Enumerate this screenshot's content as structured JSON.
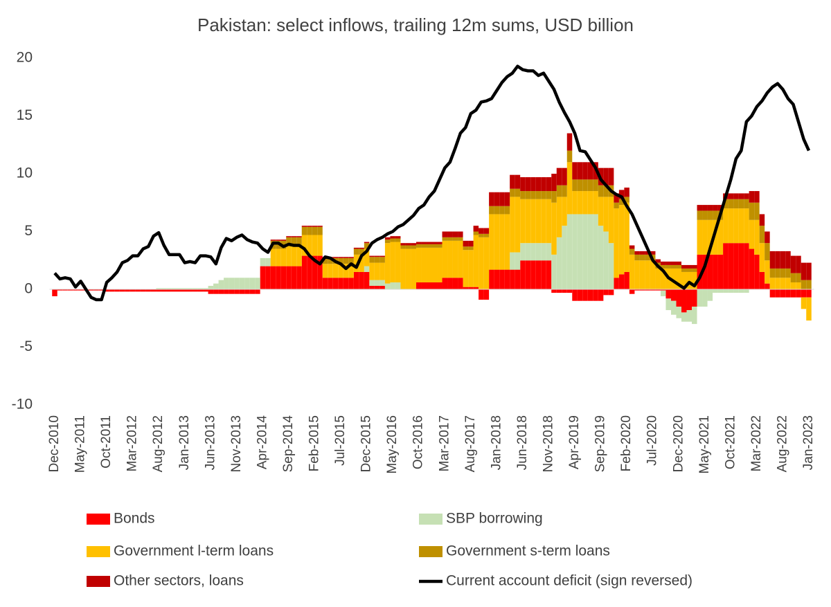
{
  "chart_data": {
    "type": "bar",
    "stacked": true,
    "title": "Pakistan: select inflows, trailing 12m sums, USD billion",
    "categories": [
      "Dec-2010",
      null,
      null,
      null,
      null,
      "May-2011",
      null,
      null,
      null,
      null,
      "Oct-2011",
      null,
      null,
      null,
      null,
      "Mar-2012",
      null,
      null,
      null,
      null,
      "Aug-2012",
      null,
      null,
      null,
      null,
      "Jan-2013",
      null,
      null,
      null,
      null,
      "Jun-2013",
      null,
      null,
      null,
      null,
      "Nov-2013",
      null,
      null,
      null,
      null,
      "Apr-2014",
      null,
      null,
      null,
      null,
      "Sep-2014",
      null,
      null,
      null,
      null,
      "Feb-2015",
      null,
      null,
      null,
      null,
      "Jul-2015",
      null,
      null,
      null,
      null,
      "Dec-2015",
      null,
      null,
      null,
      null,
      "May-2016",
      null,
      null,
      null,
      null,
      "Oct-2016",
      null,
      null,
      null,
      null,
      "Mar-2017",
      null,
      null,
      null,
      null,
      "Aug-2017",
      null,
      null,
      null,
      null,
      "Jan-2018",
      null,
      null,
      null,
      null,
      "Jun-2018",
      null,
      null,
      null,
      null,
      "Nov-2018",
      null,
      null,
      null,
      null,
      "Apr-2019",
      null,
      null,
      null,
      null,
      "Sep-2019",
      null,
      null,
      null,
      null,
      "Feb-2020",
      null,
      null,
      null,
      null,
      "Jul-2020",
      null,
      null,
      null,
      null,
      "Dec-2020",
      null,
      null,
      null,
      null,
      "May-2021",
      null,
      null,
      null,
      null,
      "Oct-2021",
      null,
      null,
      null,
      null,
      "Mar-2022",
      null,
      null,
      null,
      null,
      "Aug-2022",
      null,
      null,
      null,
      null,
      "Jan-2023"
    ],
    "series": [
      {
        "name": "Bonds",
        "color": "#ff0000",
        "values": [
          -0.6,
          -0.1,
          -0.1,
          -0.1,
          -0.1,
          -0.1,
          -0.1,
          -0.1,
          -0.1,
          -0.1,
          -0.2,
          -0.2,
          -0.2,
          -0.2,
          -0.2,
          -0.2,
          -0.2,
          -0.2,
          -0.2,
          -0.2,
          -0.2,
          -0.2,
          -0.2,
          -0.2,
          -0.2,
          -0.2,
          -0.2,
          -0.2,
          -0.2,
          -0.2,
          -0.4,
          -0.4,
          -0.4,
          -0.4,
          -0.4,
          -0.4,
          -0.4,
          -0.4,
          -0.4,
          -0.4,
          2,
          2,
          2,
          2,
          2,
          2,
          2,
          2,
          2.9,
          2.9,
          2.9,
          2.9,
          1,
          1,
          1,
          1,
          1,
          1,
          1.5,
          1.5,
          1.5,
          0.3,
          0.3,
          0.3,
          0,
          0,
          0,
          0,
          0,
          0,
          0.6,
          0.6,
          0.6,
          0.6,
          0.6,
          1,
          1,
          1,
          1,
          0.2,
          0.2,
          0.2,
          -0.9,
          -0.9,
          1.7,
          1.7,
          1.7,
          1.7,
          1.7,
          1.7,
          2.5,
          2.5,
          2.5,
          2.5,
          2.5,
          2.5,
          -0.3,
          -0.3,
          -0.3,
          -0.3,
          -1,
          -1,
          -1,
          -1,
          -1,
          -1,
          -0.5,
          -0.5,
          1,
          1.3,
          1.5,
          -0.4,
          -0.1,
          -0.1,
          -0.1,
          -0.1,
          -0.1,
          -0.1,
          -0.8,
          -1,
          -1.5,
          -2,
          -1.8,
          -1.5,
          3,
          3,
          3,
          3,
          3,
          4,
          4,
          4,
          4,
          4,
          3.5,
          3,
          1.5,
          0.5,
          -0.7,
          -0.7,
          -0.7,
          -0.7,
          -0.7,
          -0.7,
          -0.7,
          -0.7
        ]
      },
      {
        "name": "SBP borrowing",
        "color": "#c6e0b4",
        "values": [
          0,
          0,
          0,
          0,
          0,
          0,
          0,
          0,
          0,
          0,
          0,
          0,
          0,
          0,
          0,
          0,
          0,
          0,
          0,
          0,
          0.1,
          0.1,
          0.1,
          0.1,
          0.1,
          0.1,
          0.1,
          0.1,
          0.1,
          0.1,
          0.3,
          0.5,
          0.8,
          1,
          1,
          1,
          1,
          1,
          1,
          1,
          0.7,
          0.7,
          0,
          0,
          0,
          0,
          0,
          0,
          0,
          0,
          0,
          0,
          0,
          0,
          0,
          0,
          0,
          0,
          0,
          0,
          0.5,
          0.5,
          0.5,
          0.5,
          0.5,
          0.6,
          0.6,
          0,
          0,
          0,
          0,
          0,
          0,
          0,
          0,
          0,
          0,
          0,
          0,
          0,
          0,
          0,
          0,
          0,
          0,
          0,
          0,
          0,
          1.5,
          1.5,
          1.5,
          1.5,
          1.5,
          1.5,
          1.5,
          1.5,
          3,
          4.5,
          5.5,
          6.5,
          6.5,
          6.5,
          6.5,
          6.5,
          6.5,
          5.5,
          5,
          4,
          0,
          0,
          0,
          0,
          0,
          0,
          0,
          0,
          0,
          -0.5,
          -1,
          -1.2,
          -1,
          -0.8,
          -1,
          -1.5,
          -1.5,
          -1.5,
          -1,
          -0.3,
          -0.3,
          -0.3,
          -0.3,
          -0.3,
          -0.3,
          -0.3,
          0,
          0,
          0,
          0,
          0,
          0,
          0,
          0,
          0,
          0,
          0,
          0
        ]
      },
      {
        "name": "Government l-term loans",
        "color": "#ffc000",
        "values": [
          0,
          0,
          0,
          0,
          0,
          0,
          0,
          0,
          0,
          0,
          0,
          0,
          0,
          0,
          0,
          0,
          0,
          0,
          0,
          0,
          0,
          0,
          0,
          0,
          0,
          0,
          0,
          0,
          0,
          0,
          0,
          0,
          0,
          0,
          0,
          0,
          0,
          0,
          0,
          0,
          0,
          0,
          1.5,
          1.5,
          1.5,
          1.8,
          1.8,
          1.8,
          1.8,
          1.8,
          1.8,
          1.8,
          1.2,
          1.2,
          1.2,
          1.2,
          1.2,
          1.2,
          1.5,
          1.5,
          1.5,
          1.5,
          1.5,
          1.5,
          3.5,
          3.5,
          3.5,
          3.5,
          3.5,
          3.5,
          3,
          3,
          3,
          3,
          3,
          3.2,
          3.2,
          3.2,
          3.2,
          3.2,
          3.2,
          4.5,
          4.5,
          4.5,
          4.8,
          4.8,
          4.8,
          4.8,
          4.8,
          4.8,
          3.8,
          3.8,
          3.8,
          3.8,
          3.8,
          3.8,
          4.5,
          3.5,
          2.5,
          4.5,
          2,
          2,
          2,
          2,
          2,
          2.5,
          3,
          4,
          6,
          6,
          6,
          3,
          2.5,
          2.5,
          2.5,
          2.5,
          1.8,
          1.8,
          1.8,
          1.8,
          1.8,
          1.5,
          1.5,
          1.5,
          3,
          3,
          3,
          3,
          3,
          3,
          3,
          3,
          3,
          3,
          2.5,
          3,
          2.5,
          2,
          1,
          1,
          1,
          1,
          0.6,
          0.6,
          -1,
          -2
        ]
      },
      {
        "name": "Government s-term loans",
        "color": "#bf9000",
        "values": [
          0,
          0,
          0,
          0,
          0,
          0,
          0,
          0,
          0,
          0,
          0,
          0,
          0,
          0,
          0,
          0,
          0,
          0,
          0,
          0,
          0,
          0,
          0,
          0,
          0,
          0,
          0,
          0,
          0,
          0,
          0,
          0,
          0,
          0,
          0,
          0,
          0,
          0,
          0,
          0,
          0,
          0,
          0.7,
          0.7,
          0.7,
          0.7,
          0.7,
          0.7,
          0.7,
          0.7,
          0.7,
          0.7,
          0.5,
          0.5,
          0.5,
          0.5,
          0.5,
          0.5,
          0.5,
          0.5,
          0.5,
          0.5,
          0.5,
          0.5,
          0.3,
          0.3,
          0.3,
          0.3,
          0.3,
          0.3,
          0.3,
          0.3,
          0.3,
          0.3,
          0.3,
          0.3,
          0.3,
          0.3,
          0.3,
          0.3,
          0.3,
          0.3,
          0.3,
          0.3,
          0.7,
          0.7,
          0.7,
          0.7,
          0.7,
          0.7,
          0.7,
          0.7,
          0.7,
          0.7,
          0.7,
          0.7,
          1,
          1,
          1,
          1,
          1,
          1,
          1,
          1,
          1,
          1,
          1,
          1,
          0.5,
          0.5,
          0.5,
          0.5,
          0.5,
          0.5,
          0.5,
          0.5,
          0.5,
          0.3,
          0.3,
          0.3,
          0.3,
          0.3,
          0.3,
          0.3,
          0.8,
          0.8,
          0.8,
          0.8,
          0.8,
          0.8,
          0.8,
          0.8,
          0.8,
          0.8,
          1.5,
          1.5,
          1.5,
          1.5,
          0.8,
          0.8,
          0.8,
          0.8,
          0.8,
          0.8,
          0.8,
          0.8
        ]
      },
      {
        "name": "Other sectors, loans",
        "color": "#c00000",
        "values": [
          0,
          0,
          0,
          0,
          0,
          0,
          0,
          0,
          0,
          0,
          0,
          0,
          0,
          0,
          0,
          0,
          0,
          0,
          0,
          0,
          0,
          0,
          0,
          0,
          0,
          0,
          0,
          0,
          0,
          0,
          0,
          0,
          0,
          0,
          0,
          0,
          0,
          0,
          0,
          0,
          0,
          0,
          0.1,
          0.1,
          0.1,
          0.1,
          0.1,
          0.1,
          0.1,
          0.1,
          0.1,
          0.1,
          0.1,
          0.1,
          0.1,
          0.1,
          0.1,
          0.1,
          0.1,
          0.1,
          0.1,
          0.1,
          0.1,
          0.1,
          0.2,
          0.2,
          0.2,
          0.2,
          0.2,
          0.2,
          0.2,
          0.2,
          0.2,
          0.2,
          0.2,
          0.5,
          0.5,
          0.5,
          0.5,
          0.5,
          0.5,
          0.5,
          0.5,
          0.5,
          1.2,
          1.2,
          1.2,
          1.2,
          1.2,
          1.2,
          1.2,
          1.2,
          1.2,
          1.2,
          1.2,
          1.2,
          1.5,
          1.5,
          1.5,
          1.5,
          1.5,
          1.5,
          1.5,
          1.5,
          1.5,
          1.5,
          1.5,
          1.5,
          0.8,
          0.8,
          0.8,
          0.3,
          0.3,
          0.3,
          0.3,
          0.3,
          0.3,
          0.3,
          0.3,
          0.3,
          0.3,
          0.3,
          0.3,
          0.3,
          0.5,
          0.5,
          0.5,
          0.5,
          0.5,
          0.5,
          0.5,
          0.5,
          0.5,
          0.5,
          1,
          1,
          1,
          1,
          1.5,
          1.5,
          1.5,
          1.5,
          1.5,
          1.5,
          1.5,
          1.5
        ]
      },
      {
        "name": "Current account deficit (sign reversed)",
        "color": "#000000",
        "type": "line",
        "values": [
          1.4,
          0.9,
          1,
          0.9,
          0.2,
          0.7,
          0,
          -0.7,
          -0.9,
          -0.9,
          0.6,
          1,
          1.5,
          2.3,
          2.5,
          2.9,
          2.9,
          3.5,
          3.7,
          4.6,
          4.9,
          3.8,
          3,
          3,
          3,
          2.3,
          2.4,
          2.3,
          2.9,
          2.9,
          2.8,
          2.2,
          3.6,
          4.4,
          4.2,
          4.5,
          4.7,
          4.3,
          4.1,
          4,
          3.5,
          3.2,
          4,
          4,
          3.7,
          3.9,
          3.8,
          3.8,
          3.5,
          2.9,
          2.5,
          2.2,
          2.8,
          2.7,
          2.4,
          2.2,
          1.8,
          2.2,
          1.9,
          2.9,
          3.3,
          4,
          4.3,
          4.5,
          4.8,
          5,
          5.4,
          5.6,
          6,
          6.4,
          7,
          7.3,
          8,
          8.5,
          9.5,
          10.5,
          11,
          12.2,
          13.5,
          14,
          15.2,
          15.5,
          16.2,
          16.3,
          16.5,
          17.2,
          17.9,
          18.4,
          18.7,
          19.3,
          19,
          18.9,
          18.9,
          18.5,
          18.7,
          18,
          17.3,
          16.2,
          15.3,
          14.5,
          13.5,
          12,
          11.9,
          11.2,
          10.5,
          9.5,
          9,
          8.5,
          8.2,
          8,
          7.2,
          6.5,
          5.5,
          4.5,
          3.5,
          2.5,
          2,
          1.6,
          1,
          0.7,
          0.4,
          0.1,
          0.6,
          0.3,
          1,
          2,
          3.5,
          5,
          6.5,
          8,
          9.5,
          11.3,
          12,
          14.5,
          15,
          15.8,
          16.3,
          17,
          17.5,
          17.8,
          17.3,
          16.5,
          16,
          14.5,
          13,
          12
        ]
      }
    ],
    "ylim": [
      -10,
      20
    ],
    "yticks": [
      20,
      15,
      10,
      5,
      0,
      -5,
      -10
    ],
    "grid": false
  }
}
